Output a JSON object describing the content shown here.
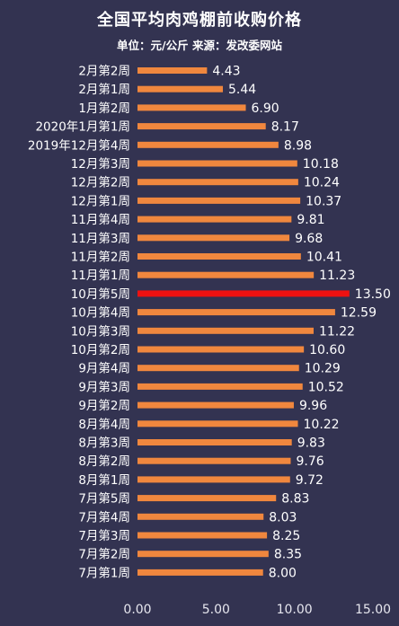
{
  "chart_data": {
    "type": "bar",
    "orientation": "horizontal",
    "title": "全国平均肉鸡棚前收购价格",
    "subtitle": "单位：元/公斤 来源：发改委网站",
    "categories": [
      "2月第2周",
      "2月第1周",
      "1月第2周",
      "2020年1月第1周",
      "2019年12月第4周",
      "12月第3周",
      "12月第2周",
      "12月第1周",
      "11月第4周",
      "11月第3周",
      "11月第2周",
      "11月第1周",
      "10月第5周",
      "10月第4周",
      "10月第3周",
      "10月第2周",
      "9月第4周",
      "9月第3周",
      "9月第2周",
      "8月第4周",
      "8月第3周",
      "8月第2周",
      "8月第1周",
      "7月第5周",
      "7月第4周",
      "7月第3周",
      "7月第2周",
      "7月第1周"
    ],
    "values": [
      4.43,
      5.44,
      6.9,
      8.17,
      8.98,
      10.18,
      10.24,
      10.37,
      9.81,
      9.68,
      10.41,
      11.23,
      13.5,
      12.59,
      11.22,
      10.6,
      10.29,
      10.52,
      9.96,
      10.22,
      9.83,
      9.76,
      9.72,
      8.83,
      8.03,
      8.25,
      8.35,
      8.0
    ],
    "value_labels": [
      "4.43",
      "5.44",
      "6.90",
      "8.17",
      "8.98",
      "10.18",
      "10.24",
      "10.37",
      "9.81",
      "9.68",
      "10.41",
      "11.23",
      "13.50",
      "12.59",
      "11.22",
      "10.60",
      "10.29",
      "10.52",
      "9.96",
      "10.22",
      "9.83",
      "9.76",
      "9.72",
      "8.83",
      "8.03",
      "8.25",
      "8.35",
      "8.00"
    ],
    "highlight_index": 12,
    "xlim": [
      0,
      15
    ],
    "xticks": [
      "0.00",
      "5.00",
      "10.00",
      "15.00"
    ],
    "grid": false,
    "colors": {
      "bar": "#F0873E",
      "highlight": "#EE1111",
      "background": "#333351"
    }
  }
}
